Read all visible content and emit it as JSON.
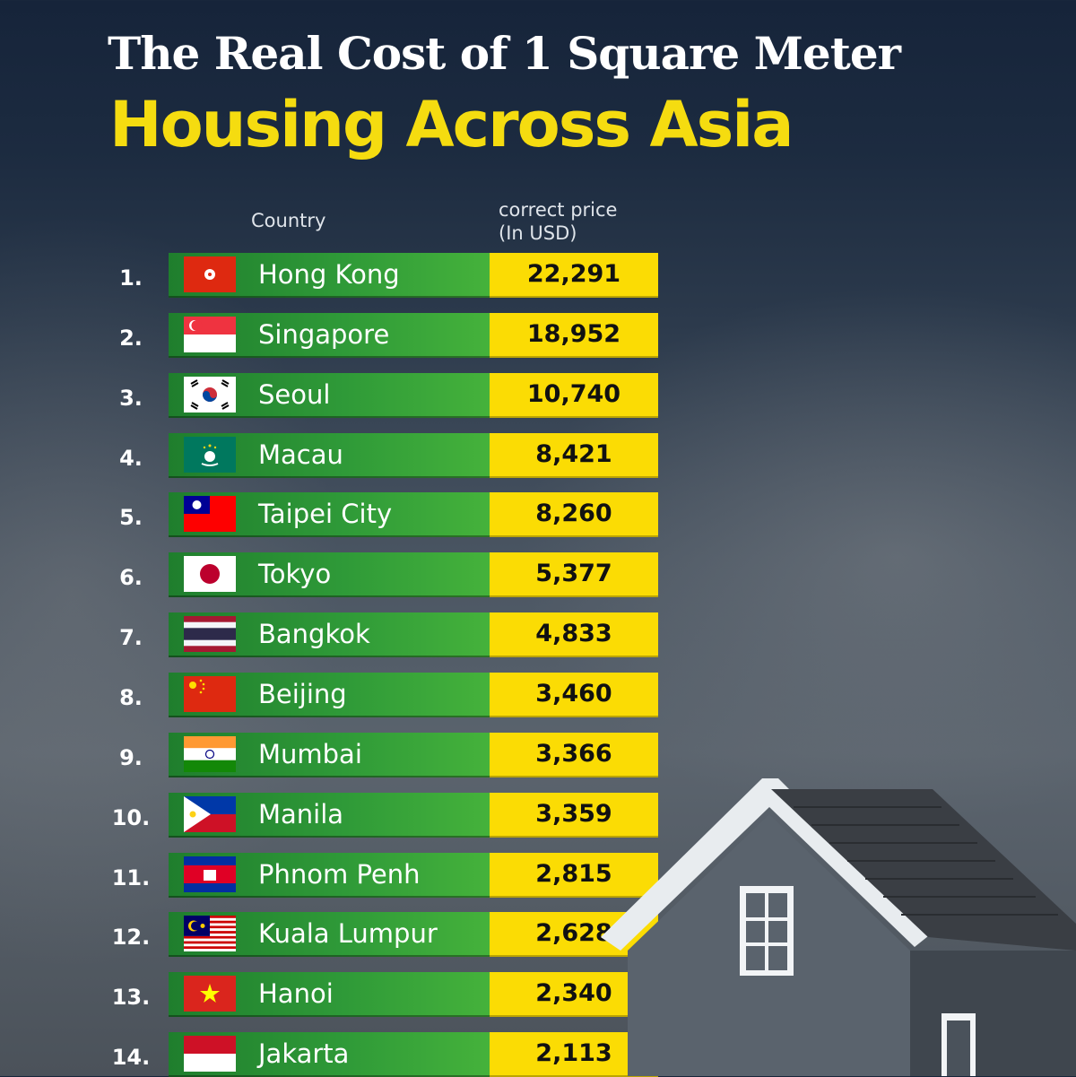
{
  "title_line1": "The Real Cost of  1 Square Meter",
  "title_line2": "Housing Across Asia",
  "headers": {
    "country": "Country",
    "price_line1": "correct price",
    "price_line2": "(In USD)"
  },
  "colors": {
    "title_accent": "#f5dc10",
    "row_green": "#2f9a38",
    "price_yellow": "#fbdc04"
  },
  "chart_data": {
    "type": "table",
    "columns": [
      "",
      "Country",
      "correct price (In USD)"
    ],
    "rows": [
      {
        "rank": "1.",
        "city": "Hong Kong",
        "price": "22,291",
        "value": 22291,
        "flag": "hong-kong-flag"
      },
      {
        "rank": "2.",
        "city": "Singapore",
        "price": "18,952",
        "value": 18952,
        "flag": "singapore-flag"
      },
      {
        "rank": "3.",
        "city": "Seoul",
        "price": "10,740",
        "value": 10740,
        "flag": "south-korea-flag"
      },
      {
        "rank": "4.",
        "city": "Macau",
        "price": "8,421",
        "value": 8421,
        "flag": "macau-flag"
      },
      {
        "rank": "5.",
        "city": "Taipei City",
        "price": "8,260",
        "value": 8260,
        "flag": "taiwan-flag"
      },
      {
        "rank": "6.",
        "city": "Tokyo",
        "price": "5,377",
        "value": 5377,
        "flag": "japan-flag"
      },
      {
        "rank": "7.",
        "city": "Bangkok",
        "price": "4,833",
        "value": 4833,
        "flag": "thailand-flag"
      },
      {
        "rank": "8.",
        "city": "Beijing",
        "price": "3,460",
        "value": 3460,
        "flag": "china-flag"
      },
      {
        "rank": "9.",
        "city": "Mumbai",
        "price": "3,366",
        "value": 3366,
        "flag": "india-flag"
      },
      {
        "rank": "10.",
        "city": "Manila",
        "price": "3,359",
        "value": 3359,
        "flag": "philippines-flag"
      },
      {
        "rank": "11.",
        "city": "Phnom Penh",
        "price": "2,815",
        "value": 2815,
        "flag": "cambodia-flag"
      },
      {
        "rank": "12.",
        "city": "Kuala Lumpur",
        "price": "2,628",
        "value": 2628,
        "flag": "malaysia-flag"
      },
      {
        "rank": "13.",
        "city": "Hanoi",
        "price": "2,340",
        "value": 2340,
        "flag": "vietnam-flag"
      },
      {
        "rank": "14.",
        "city": "Jakarta",
        "price": "2,113",
        "value": 2113,
        "flag": "indonesia-flag"
      }
    ]
  }
}
